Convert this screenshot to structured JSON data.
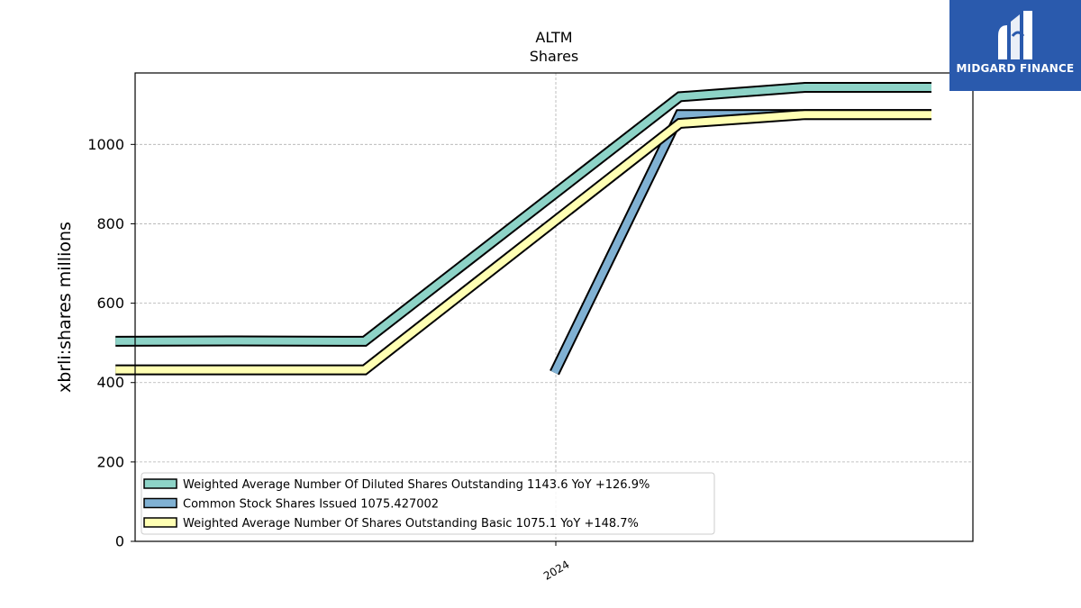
{
  "chart_data": {
    "type": "line",
    "title": "ALTM",
    "subtitle": "Shares",
    "ylabel": "xbrli:shares millions",
    "xlabel": "",
    "ylim": [
      0,
      1180
    ],
    "yticks": [
      0,
      200,
      400,
      600,
      800,
      1000
    ],
    "x_tick_labels": [
      "2024"
    ],
    "grid": true,
    "legend_position": "lower-left",
    "series": [
      {
        "name": "Weighted Average Number Of Diluted Shares Outstanding  1143.6 YoY +126.9%",
        "color": "#8dd3c7",
        "points": [
          {
            "x": "2023-02-15",
            "y": 504
          },
          {
            "x": "2023-05-15",
            "y": 505
          },
          {
            "x": "2023-08-15",
            "y": 504
          },
          {
            "x": "2024-03-31",
            "y": 1120
          },
          {
            "x": "2024-06-30",
            "y": 1143.6
          },
          {
            "x": "2024-09-30",
            "y": 1143.6
          }
        ]
      },
      {
        "name": "Common Stock Shares Issued  1075.427002",
        "color": "#80b1d3",
        "points": [
          {
            "x": "2023-12-31",
            "y": 425
          },
          {
            "x": "2024-03-31",
            "y": 1075
          },
          {
            "x": "2024-06-30",
            "y": 1075.4
          },
          {
            "x": "2024-09-30",
            "y": 1075.4
          }
        ]
      },
      {
        "name": "Weighted Average Number Of Shares Outstanding Basic  1075.1 YoY +148.7%",
        "color": "#ffffb3",
        "points": [
          {
            "x": "2023-02-15",
            "y": 432
          },
          {
            "x": "2023-05-15",
            "y": 432
          },
          {
            "x": "2023-08-15",
            "y": 432
          },
          {
            "x": "2024-03-31",
            "y": 1053
          },
          {
            "x": "2024-06-30",
            "y": 1075.1
          },
          {
            "x": "2024-09-30",
            "y": 1075.1
          }
        ]
      }
    ]
  },
  "logo": {
    "text": "MIDGARD FINANCE",
    "background": "#2a5aad"
  }
}
